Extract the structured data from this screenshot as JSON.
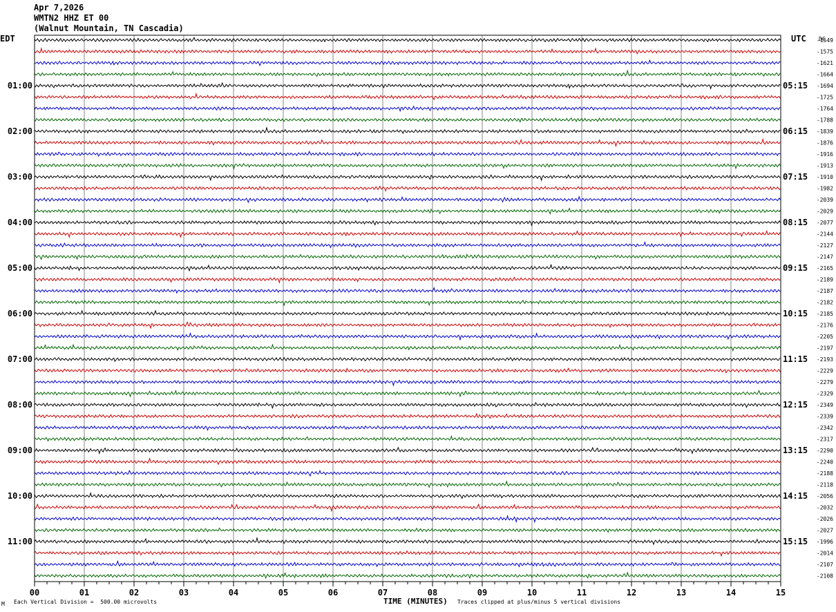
{
  "header": {
    "date": "Apr 7,2026",
    "channel": "WMTN2 HHZ ET 00",
    "station": "(Walnut Mountain, TN Cascadia)"
  },
  "footer": {
    "scale_note": "Each Vertical Division =  500.00 microvolts",
    "clip_note": "Traces clipped at plus/minus 5 vertical divisions",
    "corner_mark": "M"
  },
  "chart_data": {
    "type": "line",
    "title": "",
    "xlabel": "TIME (MINUTES)",
    "ylabel_left": "EDT",
    "ylabel_right": "UTC",
    "dc_label": "DC",
    "xlim": [
      0,
      15
    ],
    "x_ticks": [
      "00",
      "01",
      "02",
      "03",
      "04",
      "05",
      "06",
      "07",
      "08",
      "09",
      "10",
      "11",
      "12",
      "13",
      "14",
      "15"
    ],
    "trace_colors": [
      "#000000",
      "#cc0000",
      "#0000cc",
      "#006600"
    ],
    "left_hour_labels": [
      "01:00",
      "02:00",
      "03:00",
      "04:00",
      "05:00",
      "06:00",
      "07:00",
      "08:00",
      "09:00",
      "10:00",
      "11:00"
    ],
    "right_hour_labels": [
      "05:15",
      "06:15",
      "07:15",
      "08:15",
      "09:15",
      "10:15",
      "11:15",
      "12:15",
      "13:15",
      "14:15",
      "15:15"
    ],
    "trace_dc_offsets": [
      -1549,
      -1575,
      -1621,
      -1664,
      -1694,
      -1725,
      -1764,
      -1788,
      -1839,
      -1876,
      -1916,
      -1913,
      -1910,
      -1982,
      -2039,
      -2029,
      -2077,
      -2144,
      -2127,
      -2147,
      -2165,
      -2189,
      -2187,
      -2182,
      -2185,
      -2176,
      -2205,
      -2197,
      -2193,
      -2229,
      -2279,
      -2329,
      -2349,
      -2339,
      -2342,
      -2317,
      -2290,
      -2240,
      -2188,
      -2118,
      -2056,
      -2032,
      -2026,
      -2027,
      -1996,
      -2014,
      -2107,
      -2108
    ],
    "grid": true
  }
}
